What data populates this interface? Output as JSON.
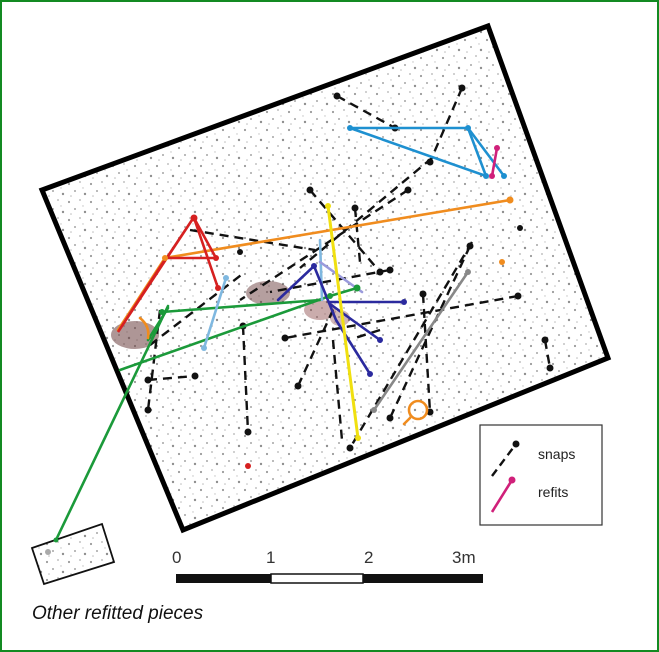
{
  "legend": {
    "snaps_label": "snaps",
    "refits_label": "refits"
  },
  "scale": {
    "labels": [
      "0",
      "1",
      "2",
      "3m"
    ]
  },
  "caption": "Other refitted pieces",
  "colors": {
    "frame": "#138a22",
    "snap": "#111111",
    "refit_legend": "#d0207a",
    "series": [
      "#d62020",
      "#f08c1e",
      "#1b9a3a",
      "#1e90d0",
      "#7fb8e0",
      "#2b2a9e",
      "#f0e010",
      "#888888",
      "#d0207a",
      "#9a9adc",
      "#7a1010"
    ]
  }
}
